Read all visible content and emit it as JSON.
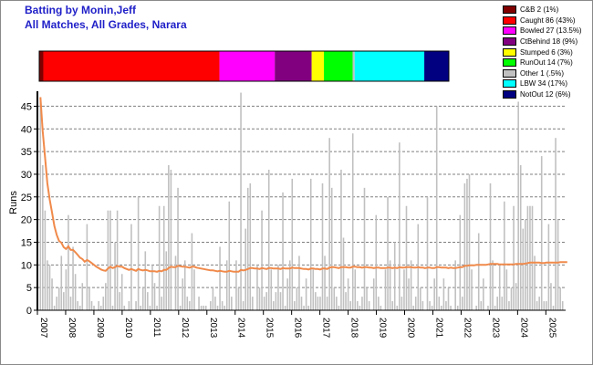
{
  "header": {
    "title_line1": "Batting by Monin,Jeff",
    "title_line2": "All Matches, All Grades, Narara"
  },
  "legend": [
    {
      "label": "C&B 2 (1%)",
      "color": "#800000"
    },
    {
      "label": "Caught 86 (43%)",
      "color": "#ff0000"
    },
    {
      "label": "Bowled 27 (13.5%)",
      "color": "#ff00ff"
    },
    {
      "label": "CtBehind 18 (9%)",
      "color": "#800080"
    },
    {
      "label": "Stumped 6 (3%)",
      "color": "#ffff00"
    },
    {
      "label": "RunOut 14 (7%)",
      "color": "#00ff00"
    },
    {
      "label": "Other 1 (.5%)",
      "color": "#c0c0c0"
    },
    {
      "label": "LBW 34 (17%)",
      "color": "#00ffff"
    },
    {
      "label": "NotOut 12 (6%)",
      "color": "#000080"
    }
  ],
  "chart_data": [
    {
      "type": "bar",
      "title": "",
      "stacked_horizontal": true,
      "segments": [
        {
          "name": "C&B",
          "value": 2,
          "color": "#800000"
        },
        {
          "name": "Caught",
          "value": 86,
          "color": "#ff0000"
        },
        {
          "name": "Bowled",
          "value": 27,
          "color": "#ff00ff"
        },
        {
          "name": "CtBehind",
          "value": 18,
          "color": "#800080"
        },
        {
          "name": "Stumped",
          "value": 6,
          "color": "#ffff00"
        },
        {
          "name": "RunOut",
          "value": 14,
          "color": "#00ff00"
        },
        {
          "name": "Other",
          "value": 1,
          "color": "#c0c0c0"
        },
        {
          "name": "LBW",
          "value": 34,
          "color": "#00ffff"
        },
        {
          "name": "NotOut",
          "value": 12,
          "color": "#000080"
        }
      ]
    },
    {
      "type": "bar",
      "xlabel": "",
      "ylabel": "Runs",
      "ylim": [
        0,
        47.5
      ],
      "yticks": [
        0,
        5,
        10,
        15,
        20,
        25,
        30,
        35,
        40,
        45
      ],
      "grid": true,
      "xlim": [
        2007,
        2025.7
      ],
      "year_ticks": [
        2007,
        2008,
        2009,
        2010,
        2011,
        2012,
        2013,
        2014,
        2015,
        2016,
        2017,
        2018,
        2019,
        2020,
        2021,
        2022,
        2023,
        2024,
        2025
      ],
      "bar_color": "#c0c0c0",
      "line_color": "#f08a4b",
      "runs": [
        47,
        32,
        22,
        11,
        10,
        7,
        1,
        3,
        5,
        12,
        4,
        9,
        21,
        3,
        14,
        8,
        2,
        1,
        6,
        0,
        19,
        5,
        2,
        1,
        0,
        2,
        1,
        3,
        6,
        22,
        22,
        1,
        15,
        22,
        4,
        8,
        1,
        0,
        2,
        19,
        0,
        2,
        25,
        1,
        5,
        13,
        4,
        1,
        10,
        6,
        1,
        23,
        3,
        23,
        13,
        32,
        31,
        0,
        12,
        27,
        1,
        7,
        11,
        3,
        2,
        17,
        9,
        0,
        3,
        1,
        1,
        1,
        0,
        2,
        5,
        3,
        1,
        14,
        2,
        1,
        11,
        24,
        3,
        0,
        11,
        5,
        48,
        2,
        18,
        27,
        28,
        3,
        0,
        10,
        5,
        22,
        3,
        4,
        31,
        9,
        2,
        4,
        10,
        4,
        26,
        1,
        7,
        11,
        29,
        2,
        5,
        12,
        3,
        1,
        7,
        1,
        29,
        9,
        4,
        3,
        3,
        28,
        12,
        3,
        38,
        27,
        5,
        3,
        1,
        31,
        16,
        4,
        7,
        2,
        39,
        9,
        2,
        1,
        3,
        27,
        5,
        2,
        0,
        7,
        21,
        3,
        1,
        0,
        9,
        25,
        11,
        2,
        15,
        1,
        37,
        3,
        9,
        23,
        7,
        11,
        1,
        3,
        19,
        5,
        2,
        0,
        25,
        2,
        1,
        7,
        45,
        3,
        1,
        7,
        2,
        5,
        1,
        0,
        11,
        1,
        21,
        3,
        28,
        29,
        30,
        9,
        0,
        1,
        17,
        2,
        7,
        0,
        1,
        28,
        11,
        1,
        3,
        10,
        3,
        24,
        9,
        2,
        5,
        23,
        6,
        46,
        32,
        18,
        20,
        23,
        23,
        23,
        12,
        2,
        3,
        34,
        2,
        2,
        19,
        6,
        1,
        38,
        20,
        5,
        2
      ],
      "average": [
        47,
        39.5,
        33.7,
        28,
        24.4,
        21.5,
        18.6,
        16.6,
        15.3,
        14.9,
        13.9,
        13.5,
        14.1,
        13.3,
        13.3,
        12.8,
        12.2,
        11.6,
        11.3,
        10.7,
        11.1,
        10.8,
        10.4,
        10,
        9.6,
        9.3,
        9,
        8.8,
        8.7,
        9.2,
        9.6,
        9.3,
        9.5,
        9.8,
        9.6,
        9.6,
        9.3,
        9.1,
        8.9,
        9.1,
        8.9,
        8.7,
        9.1,
        8.9,
        8.8,
        8.9,
        8.8,
        8.6,
        8.6,
        8.6,
        8.5,
        8.7,
        8.6,
        8.9,
        8.9,
        9.3,
        9.6,
        9.5,
        9.5,
        9.8,
        9.7,
        9.6,
        9.6,
        9.5,
        9.4,
        9.6,
        9.6,
        9.4,
        9.3,
        9.2,
        9.1,
        9,
        8.9,
        8.8,
        8.8,
        8.7,
        8.6,
        8.7,
        8.6,
        8.5,
        8.5,
        8.7,
        8.6,
        8.5,
        8.5,
        8.5,
        8.9,
        8.8,
        8.9,
        9.1,
        9.3,
        9.3,
        9.2,
        9.2,
        9.1,
        9.3,
        9.2,
        9.1,
        9.3,
        9.3,
        9.2,
        9.2,
        9.2,
        9.1,
        9.3,
        9.2,
        9.2,
        9.2,
        9.4,
        9.3,
        9.3,
        9.3,
        9.2,
        9.1,
        9.1,
        9,
        9.2,
        9.2,
        9.1,
        9.1,
        9,
        9.2,
        9.2,
        9.1,
        9.4,
        9.5,
        9.5,
        9.4,
        9.3,
        9.5,
        9.5,
        9.5,
        9.4,
        9.4,
        9.6,
        9.6,
        9.5,
        9.5,
        9.4,
        9.5,
        9.5,
        9.4,
        9.4,
        9.3,
        9.4,
        9.4,
        9.3,
        9.3,
        9.3,
        9.4,
        9.4,
        9.3,
        9.4,
        9.3,
        9.5,
        9.4,
        9.4,
        9.5,
        9.5,
        9.5,
        9.4,
        9.4,
        9.5,
        9.4,
        9.4,
        9.3,
        9.4,
        9.4,
        9.3,
        9.3,
        9.5,
        9.5,
        9.4,
        9.4,
        9.4,
        9.3,
        9.4,
        9.3,
        9.3,
        9.4,
        9.5,
        9.5,
        9.8,
        9.8,
        9.9,
        9.9,
        9.9,
        10,
        10,
        10,
        10,
        10,
        10.1,
        10.2,
        10.2,
        10.2,
        10.2,
        10.1,
        10.1,
        10.1,
        10.1,
        10.1,
        10.1,
        10.1,
        10.2,
        10.2,
        10.2,
        10.2,
        10.3,
        10.4,
        10.5,
        10.5,
        10.5,
        10.5,
        10.5,
        10.4,
        10.4,
        10.5,
        10.5,
        10.5,
        10.5,
        10.5,
        10.5,
        10.6,
        10.6,
        10.6,
        10.6
      ]
    }
  ]
}
